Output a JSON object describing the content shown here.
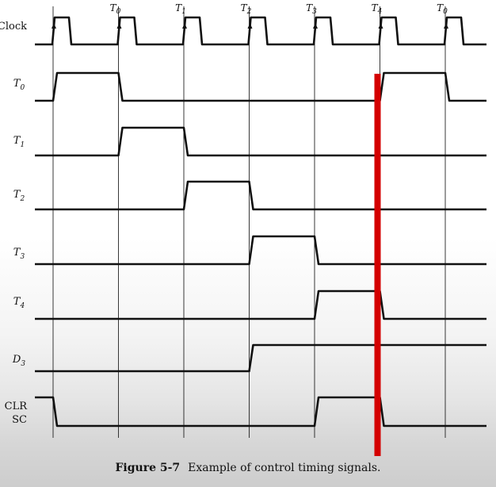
{
  "diagram": {
    "clock_ticks": [
      {
        "base": "T",
        "sub": "0"
      },
      {
        "base": "T",
        "sub": "1"
      },
      {
        "base": "T",
        "sub": "2"
      },
      {
        "base": "T",
        "sub": "3"
      },
      {
        "base": "T",
        "sub": "4"
      },
      {
        "base": "T",
        "sub": "0"
      }
    ],
    "signals": [
      {
        "name": "clock",
        "label": "Clock",
        "italic": false,
        "waveform": "pulse-train"
      },
      {
        "name": "t0",
        "base": "T",
        "sub": "0",
        "italic": true,
        "high_intervals": [
          [
            0,
            1
          ],
          [
            5,
            6
          ]
        ]
      },
      {
        "name": "t1",
        "base": "T",
        "sub": "1",
        "italic": true,
        "high_intervals": [
          [
            1,
            2
          ]
        ]
      },
      {
        "name": "t2",
        "base": "T",
        "sub": "2",
        "italic": true,
        "high_intervals": [
          [
            2,
            3
          ]
        ]
      },
      {
        "name": "t3",
        "base": "T",
        "sub": "3",
        "italic": true,
        "high_intervals": [
          [
            3,
            4
          ]
        ]
      },
      {
        "name": "t4",
        "base": "T",
        "sub": "4",
        "italic": true,
        "high_intervals": [
          [
            4,
            5
          ]
        ]
      },
      {
        "name": "d3",
        "base": "D",
        "sub": "3",
        "italic": true,
        "high_intervals": [
          [
            3,
            7
          ]
        ]
      },
      {
        "name": "clr-sc",
        "label_lines": [
          "CLR",
          "SC"
        ],
        "italic": false,
        "high_intervals": [
          [
            -1,
            0
          ],
          [
            4,
            5
          ]
        ]
      }
    ],
    "annotation_marker": {
      "color": "#d40000",
      "at_edge": 5
    }
  },
  "caption": {
    "figure_number": "Figure 5-7",
    "text": "Example of control timing signals."
  }
}
